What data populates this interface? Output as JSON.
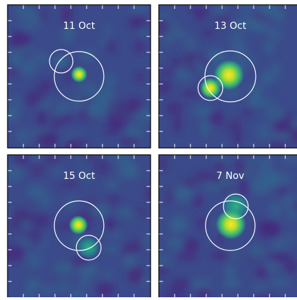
{
  "panels": [
    {
      "label": "11 Oct"
    },
    {
      "label": "13 Oct"
    },
    {
      "label": "15 Oct"
    },
    {
      "label": "7 Nov"
    }
  ]
}
